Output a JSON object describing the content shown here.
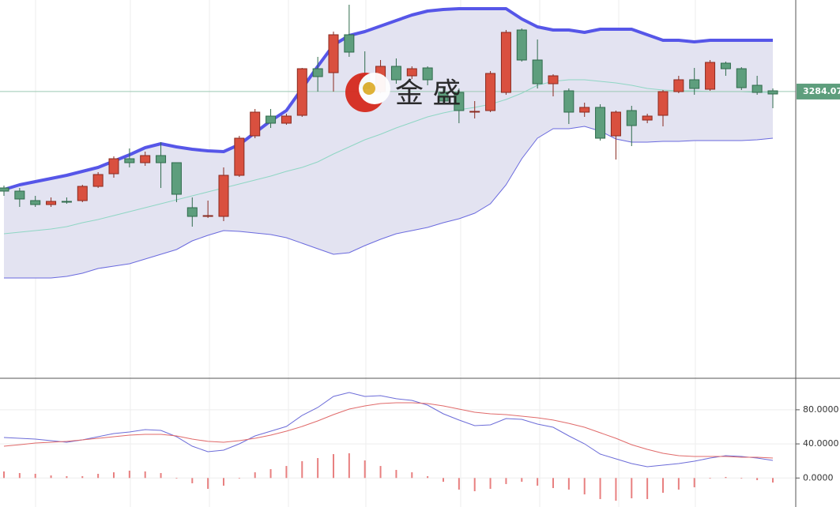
{
  "watermark": "金 盛",
  "chart_data": [
    {
      "type": "candlestick",
      "categories": [
        null,
        null,
        null,
        null,
        null,
        null,
        null,
        null,
        null,
        null,
        null,
        null,
        null,
        null,
        null,
        null,
        null,
        null,
        null,
        null,
        null,
        null,
        null,
        null,
        null,
        null,
        null,
        null,
        null,
        null,
        null,
        null,
        null,
        null,
        null,
        null,
        null,
        null,
        null,
        null,
        null,
        null,
        null,
        null,
        null,
        null,
        null,
        null,
        null,
        null
      ],
      "open": [
        3162,
        3158,
        3146,
        3141,
        3145,
        3146,
        3164,
        3180,
        3199,
        3194,
        3203,
        3194,
        3137,
        3126,
        3126,
        3178,
        3228,
        3253,
        3244,
        3254,
        3313,
        3308,
        3356,
        3305,
        3284,
        3316,
        3304,
        3314,
        3283,
        3283,
        3259,
        3260,
        3283,
        3362,
        3324,
        3294,
        3285,
        3258,
        3264,
        3228,
        3260,
        3248,
        3254,
        3284,
        3299,
        3287,
        3320,
        3313,
        3292,
        3285
      ],
      "high": [
        3165,
        3162,
        3152,
        3150,
        3150,
        3166,
        3182,
        3202,
        3212,
        3208,
        3220,
        3194,
        3150,
        3146,
        3188,
        3228,
        3262,
        3262,
        3256,
        3314,
        3328,
        3360,
        3394,
        3335,
        3324,
        3326,
        3316,
        3316,
        3290,
        3288,
        3272,
        3310,
        3362,
        3364,
        3350,
        3306,
        3288,
        3270,
        3268,
        3260,
        3266,
        3256,
        3286,
        3304,
        3314,
        3324,
        3322,
        3315,
        3304,
        3288
      ],
      "low": [
        3152,
        3138,
        3138,
        3138,
        3142,
        3144,
        3162,
        3175,
        3188,
        3190,
        3162,
        3144,
        3113,
        3124,
        3120,
        3176,
        3225,
        3238,
        3242,
        3252,
        3284,
        3284,
        3328,
        3282,
        3282,
        3294,
        3300,
        3292,
        3268,
        3244,
        3250,
        3258,
        3280,
        3322,
        3288,
        3278,
        3243,
        3252,
        3222,
        3198,
        3215,
        3244,
        3240,
        3282,
        3280,
        3285,
        3304,
        3286,
        3280,
        3263
      ],
      "close": [
        3158,
        3148,
        3141,
        3145,
        3144,
        3164,
        3179,
        3199,
        3194,
        3203,
        3194,
        3154,
        3126,
        3127,
        3178,
        3225,
        3258,
        3244,
        3253,
        3313,
        3303,
        3356,
        3334,
        3288,
        3316,
        3299,
        3313,
        3299,
        3272,
        3260,
        3259,
        3307,
        3359,
        3324,
        3294,
        3304,
        3258,
        3264,
        3225,
        3258,
        3241,
        3253,
        3284,
        3299,
        3288,
        3321,
        3313,
        3289,
        3283,
        3281
      ],
      "up_color": "#d9503f",
      "down_color": "#5e9e7d",
      "upper_band": {
        "color": "#5656e8",
        "values": [
          3160,
          3166,
          3170,
          3174,
          3178,
          3183,
          3188,
          3196,
          3204,
          3213,
          3218,
          3214,
          3211,
          3209,
          3208,
          3217,
          3232,
          3247,
          3260,
          3288,
          3316,
          3343,
          3355,
          3360,
          3367,
          3374,
          3381,
          3386,
          3388,
          3389,
          3389,
          3389,
          3389,
          3376,
          3366,
          3362,
          3362,
          3359,
          3363,
          3363,
          3363,
          3356,
          3349,
          3349,
          3347,
          3349,
          3349,
          3349,
          3349,
          3349
        ]
      },
      "lower_band": {
        "color": "#6a6ade",
        "values": [
          3048,
          3048,
          3048,
          3048,
          3050,
          3054,
          3060,
          3063,
          3066,
          3072,
          3078,
          3084,
          3095,
          3102,
          3108,
          3107,
          3105,
          3103,
          3099,
          3092,
          3085,
          3078,
          3080,
          3089,
          3097,
          3104,
          3108,
          3112,
          3118,
          3123,
          3130,
          3142,
          3166,
          3199,
          3225,
          3237,
          3237,
          3240,
          3234,
          3224,
          3220,
          3220,
          3221,
          3221,
          3222,
          3222,
          3222,
          3222,
          3223,
          3225
        ]
      },
      "middle_band": {
        "color": "#8fd6c4",
        "values": [
          3104,
          3106,
          3108,
          3110,
          3113,
          3118,
          3122,
          3127,
          3132,
          3137,
          3142,
          3147,
          3152,
          3157,
          3162,
          3167,
          3172,
          3177,
          3183,
          3188,
          3195,
          3205,
          3214,
          3223,
          3230,
          3238,
          3245,
          3252,
          3257,
          3261,
          3264,
          3268,
          3274,
          3282,
          3292,
          3297,
          3299,
          3299,
          3297,
          3295,
          3292,
          3288,
          3286,
          3285,
          3285,
          3284,
          3284,
          3284,
          3283,
          3283
        ]
      },
      "band_fill": "#e3e3f1",
      "last_price": 3284.07,
      "last_price_color": "#5e9e7d",
      "ylim": [
        2922,
        3400
      ]
    },
    {
      "type": "oscillator",
      "series": [
        {
          "color": "#6c6cd8",
          "values": [
            47.5,
            46.6,
            45.6,
            43.8,
            41.9,
            44.7,
            48.4,
            52.1,
            54.0,
            56.7,
            55.8,
            48.4,
            37.3,
            30.8,
            32.7,
            40.1,
            49.3,
            54.9,
            60.4,
            73.4,
            82.7,
            95.6,
            100.3,
            95.6,
            96.6,
            92.9,
            91.0,
            85.4,
            75.3,
            67.9,
            61.4,
            62.3,
            69.7,
            68.8,
            63.2,
            59.5,
            49.3,
            40.1,
            28.0,
            22.5,
            16.9,
            13.2,
            15.1,
            16.9,
            19.7,
            23.4,
            26.2,
            25.3,
            23.4,
            20.6
          ]
        },
        {
          "color": "#e06a6a",
          "values": [
            37.3,
            39.1,
            41.0,
            41.9,
            42.9,
            44.7,
            46.6,
            48.4,
            50.3,
            51.2,
            51.2,
            49.3,
            45.6,
            42.9,
            41.9,
            43.8,
            46.6,
            50.3,
            54.9,
            60.4,
            66.9,
            74.3,
            80.8,
            84.5,
            87.3,
            88.2,
            88.2,
            87.3,
            84.5,
            80.8,
            77.1,
            75.3,
            74.3,
            72.5,
            70.6,
            67.9,
            64.1,
            59.5,
            53.0,
            46.6,
            39.1,
            33.6,
            29.0,
            26.2,
            25.3,
            25.3,
            25.3,
            24.3,
            24.3,
            23.4
          ]
        }
      ],
      "histogram": {
        "color": "#e88080",
        "values": [
          7.7,
          5.8,
          4.9,
          3.0,
          2.1,
          2.1,
          4.9,
          6.7,
          8.6,
          7.7,
          5.8,
          -0.7,
          -6.2,
          -12.7,
          -9.0,
          -0.7,
          6.7,
          10.4,
          14.1,
          19.7,
          23.4,
          28.0,
          29.0,
          20.6,
          14.1,
          9.5,
          6.7,
          2.1,
          -4.4,
          -13.6,
          -15.5,
          -12.7,
          -7.1,
          -4.4,
          -9.0,
          -11.8,
          -13.6,
          -19.2,
          -24.7,
          -26.6,
          -23.8,
          -24.7,
          -17.3,
          -13.6,
          -10.9,
          -0.7,
          1.2,
          -0.7,
          -2.5,
          -5.3
        ]
      },
      "ylim": [
        -34,
        116
      ],
      "yticks": [
        {
          "value": 80,
          "label": "80.0000"
        },
        {
          "value": 40,
          "label": "40.0000"
        },
        {
          "value": 0,
          "label": "0.0000"
        }
      ],
      "grid": true
    }
  ]
}
